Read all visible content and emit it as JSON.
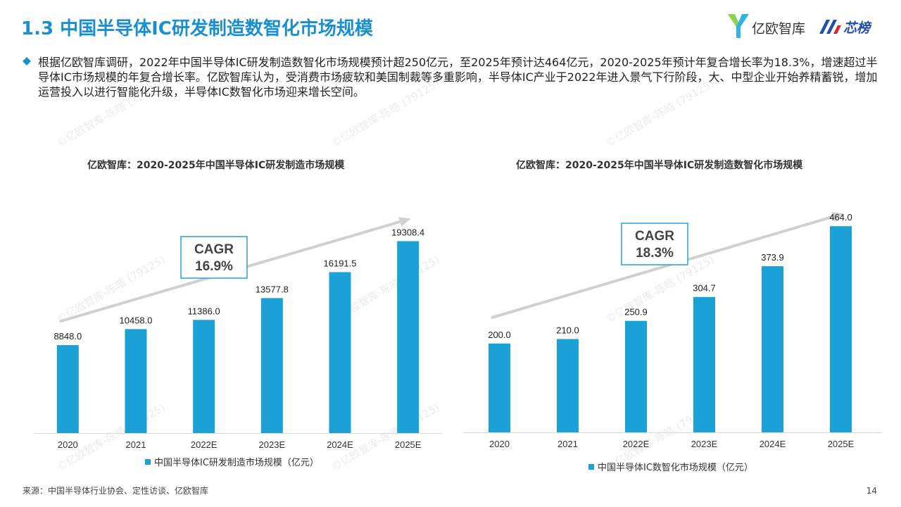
{
  "header": {
    "title": "1.3 中国半导体IC研发制造数智化市场规模",
    "logo_text_1": "亿欧智库",
    "logo_text_2": "芯榜"
  },
  "summary": {
    "text": "根据亿欧智库调研，2022年中国半导体IC研发制造数智化市场规模预计超250亿元，至2025年预计达464亿元，2020-2025年预计年复合增长率为18.3%，增速超过半导体IC市场规模的年复合增长率。亿欧智库认为，受消费市场疲软和美国制裁等多重影响，半导体IC产业于2022年进入景气下行阶段，大、中型企业开始养精蓄锐，增加运营投入以进行智能化升级，半导体IC数智化市场迎来增长空间。"
  },
  "footer": {
    "source": "来源：中国半导体行业协会、定性访谈、亿欧智库",
    "page": "14"
  },
  "watermark": {
    "text": "©亿欧智库-陈皓 (79125)"
  },
  "colors": {
    "accent": "#1a8fd0",
    "bar": "#1ba1d6",
    "arrow": "#d0d0d0",
    "cagr_border": "#2a9fd6",
    "cagr_text": "#444444"
  },
  "chart_data": [
    {
      "type": "bar",
      "title": "亿欧智库：2020-2025年中国半导体IC研发制造市场规模",
      "categories": [
        "2020",
        "2021",
        "2022E",
        "2023E",
        "2024E",
        "2025E"
      ],
      "series": [
        {
          "name": "中国半导体IC研发制造市场规模（亿元）",
          "values": [
            8848.0,
            10458.0,
            11386.0,
            13577.8,
            16191.5,
            19308.4
          ],
          "labels": [
            "8848.0",
            "10458.0",
            "11386.0",
            "13577.8",
            "16191.5",
            "19308.4"
          ]
        }
      ],
      "ylim": [
        0,
        26000
      ],
      "annotation": {
        "line1": "CAGR",
        "line2": "16.9%"
      },
      "legend_position": "bottom"
    },
    {
      "type": "bar",
      "title": "亿欧智库：2020-2025年中国半导体IC研发制造数智化市场规模",
      "categories": [
        "2020",
        "2021",
        "2022E",
        "2023E",
        "2024E",
        "2025E"
      ],
      "series": [
        {
          "name": "中国半导体IC数智化市场规模（亿元）",
          "values": [
            200.0,
            210.0,
            250.9,
            304.7,
            373.9,
            464.0
          ],
          "labels": [
            "200.0",
            "210.0",
            "250.9",
            "304.7",
            "373.9",
            "464.0"
          ]
        }
      ],
      "ylim": [
        0,
        580
      ],
      "annotation": {
        "line1": "CAGR",
        "line2": "18.3%"
      },
      "legend_position": "bottom"
    }
  ]
}
